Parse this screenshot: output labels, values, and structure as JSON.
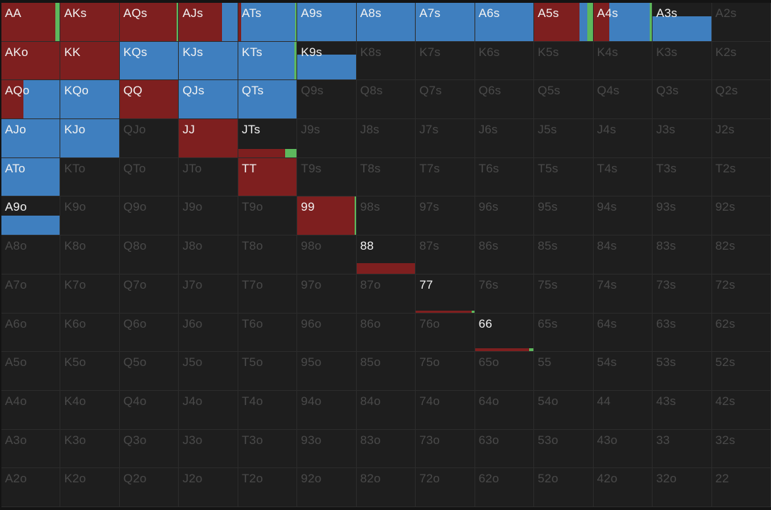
{
  "colors": {
    "raise": "#7e1f1f",
    "call": "#3f7fbf",
    "allin": "#5db85d",
    "empty": "#1e1e1e",
    "label_active": "#f2f2f2",
    "label_inactive": "#4a4a4a"
  },
  "grid": {
    "rows": [
      [
        "AA",
        "AKs",
        "AQs",
        "AJs",
        "ATs",
        "A9s",
        "A8s",
        "A7s",
        "A6s",
        "A5s",
        "A4s",
        "A3s",
        "A2s"
      ],
      [
        "AKo",
        "KK",
        "KQs",
        "KJs",
        "KTs",
        "K9s",
        "K8s",
        "K7s",
        "K6s",
        "K5s",
        "K4s",
        "K3s",
        "K2s"
      ],
      [
        "AQo",
        "KQo",
        "QQ",
        "QJs",
        "QTs",
        "Q9s",
        "Q8s",
        "Q7s",
        "Q6s",
        "Q5s",
        "Q4s",
        "Q3s",
        "Q2s"
      ],
      [
        "AJo",
        "KJo",
        "QJo",
        "JJ",
        "JTs",
        "J9s",
        "J8s",
        "J7s",
        "J6s",
        "J5s",
        "J4s",
        "J3s",
        "J2s"
      ],
      [
        "ATo",
        "KTo",
        "QTo",
        "JTo",
        "TT",
        "T9s",
        "T8s",
        "T7s",
        "T6s",
        "T5s",
        "T4s",
        "T3s",
        "T2s"
      ],
      [
        "A9o",
        "K9o",
        "Q9o",
        "J9o",
        "T9o",
        "99",
        "98s",
        "97s",
        "96s",
        "95s",
        "94s",
        "93s",
        "92s"
      ],
      [
        "A8o",
        "K8o",
        "Q8o",
        "J8o",
        "T8o",
        "98o",
        "88",
        "87s",
        "86s",
        "85s",
        "84s",
        "83s",
        "82s"
      ],
      [
        "A7o",
        "K7o",
        "Q7o",
        "J7o",
        "T7o",
        "97o",
        "87o",
        "77",
        "76s",
        "75s",
        "74s",
        "73s",
        "72s"
      ],
      [
        "A6o",
        "K6o",
        "Q6o",
        "J6o",
        "T6o",
        "96o",
        "86o",
        "76o",
        "66",
        "65s",
        "64s",
        "63s",
        "62s"
      ],
      [
        "A5o",
        "K5o",
        "Q5o",
        "J5o",
        "T5o",
        "95o",
        "85o",
        "75o",
        "65o",
        "55",
        "54s",
        "53s",
        "52s"
      ],
      [
        "A4o",
        "K4o",
        "Q4o",
        "J4o",
        "T4o",
        "94o",
        "84o",
        "74o",
        "64o",
        "54o",
        "44",
        "43s",
        "42s"
      ],
      [
        "A3o",
        "K3o",
        "Q3o",
        "J3o",
        "T3o",
        "93o",
        "83o",
        "73o",
        "63o",
        "53o",
        "43o",
        "33",
        "32s"
      ],
      [
        "A2o",
        "K2o",
        "Q2o",
        "J2o",
        "T2o",
        "92o",
        "82o",
        "72o",
        "62o",
        "52o",
        "42o",
        "32o",
        "22"
      ]
    ]
  },
  "hand_frequencies": {
    "AA": {
      "weight": 1.0,
      "raise": 0.92,
      "call": 0.0,
      "allin": 0.08
    },
    "AKs": {
      "weight": 1.0,
      "raise": 1.0,
      "call": 0.0,
      "allin": 0.0
    },
    "AQs": {
      "weight": 1.0,
      "raise": 0.97,
      "call": 0.0,
      "allin": 0.03
    },
    "AJs": {
      "weight": 1.0,
      "raise": 0.73,
      "call": 0.27,
      "allin": 0.0
    },
    "ATs": {
      "weight": 1.0,
      "raise": 0.05,
      "call": 0.92,
      "allin": 0.03
    },
    "A9s": {
      "weight": 1.0,
      "raise": 0.0,
      "call": 1.0,
      "allin": 0.0
    },
    "A8s": {
      "weight": 1.0,
      "raise": 0.0,
      "call": 1.0,
      "allin": 0.0
    },
    "A7s": {
      "weight": 1.0,
      "raise": 0.0,
      "call": 1.0,
      "allin": 0.0
    },
    "A6s": {
      "weight": 1.0,
      "raise": 0.0,
      "call": 1.0,
      "allin": 0.0
    },
    "A5s": {
      "weight": 1.0,
      "raise": 0.78,
      "call": 0.13,
      "allin": 0.09
    },
    "A4s": {
      "weight": 1.0,
      "raise": 0.27,
      "call": 0.69,
      "allin": 0.04
    },
    "A3s": {
      "weight": 0.65,
      "raise": 0.0,
      "call": 1.0,
      "allin": 0.0
    },
    "AKo": {
      "weight": 1.0,
      "raise": 1.0,
      "call": 0.0,
      "allin": 0.0
    },
    "KK": {
      "weight": 1.0,
      "raise": 1.0,
      "call": 0.0,
      "allin": 0.0
    },
    "KQs": {
      "weight": 1.0,
      "raise": 0.0,
      "call": 1.0,
      "allin": 0.0
    },
    "KJs": {
      "weight": 1.0,
      "raise": 0.0,
      "call": 1.0,
      "allin": 0.0
    },
    "KTs": {
      "weight": 1.0,
      "raise": 0.0,
      "call": 0.96,
      "allin": 0.04
    },
    "K9s": {
      "weight": 0.65,
      "raise": 0.0,
      "call": 1.0,
      "allin": 0.0
    },
    "AQo": {
      "weight": 1.0,
      "raise": 0.37,
      "call": 0.63,
      "allin": 0.0
    },
    "KQo": {
      "weight": 1.0,
      "raise": 0.0,
      "call": 1.0,
      "allin": 0.0
    },
    "QQ": {
      "weight": 1.0,
      "raise": 1.0,
      "call": 0.0,
      "allin": 0.0
    },
    "QJs": {
      "weight": 1.0,
      "raise": 0.0,
      "call": 1.0,
      "allin": 0.0
    },
    "QTs": {
      "weight": 1.0,
      "raise": 0.0,
      "call": 1.0,
      "allin": 0.0
    },
    "AJo": {
      "weight": 1.0,
      "raise": 0.0,
      "call": 1.0,
      "allin": 0.0
    },
    "KJo": {
      "weight": 1.0,
      "raise": 0.0,
      "call": 1.0,
      "allin": 0.0
    },
    "JJ": {
      "weight": 1.0,
      "raise": 1.0,
      "call": 0.0,
      "allin": 0.0
    },
    "JTs": {
      "weight": 0.22,
      "raise": 0.8,
      "call": 0.0,
      "allin": 0.2
    },
    "ATo": {
      "weight": 1.0,
      "raise": 0.0,
      "call": 1.0,
      "allin": 0.0
    },
    "TT": {
      "weight": 1.0,
      "raise": 1.0,
      "call": 0.0,
      "allin": 0.0
    },
    "A9o": {
      "weight": 0.5,
      "raise": 0.0,
      "call": 1.0,
      "allin": 0.0
    },
    "99": {
      "weight": 1.0,
      "raise": 0.98,
      "call": 0.0,
      "allin": 0.02
    },
    "88": {
      "weight": 0.28,
      "raise": 1.0,
      "call": 0.0,
      "allin": 0.0
    },
    "77": {
      "weight": 0.05,
      "raise": 0.95,
      "call": 0.0,
      "allin": 0.05
    },
    "66": {
      "weight": 0.08,
      "raise": 0.92,
      "call": 0.0,
      "allin": 0.08
    }
  }
}
